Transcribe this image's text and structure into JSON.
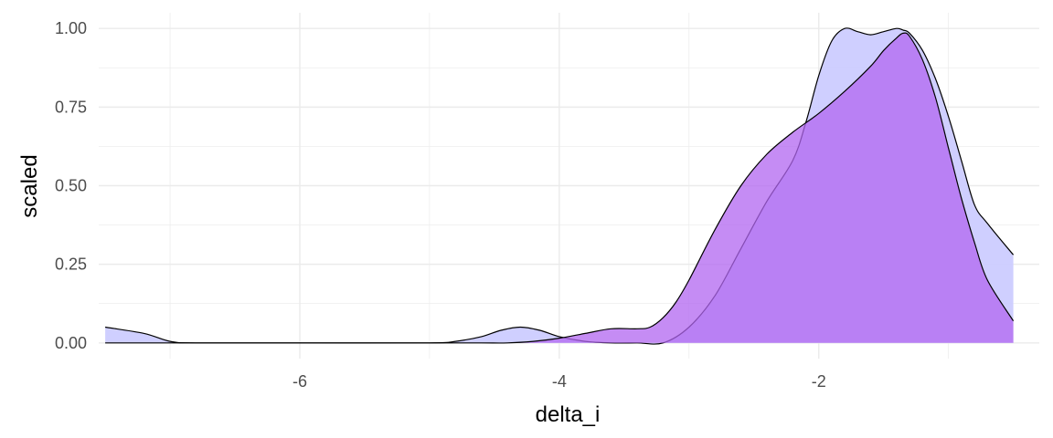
{
  "chart_data": {
    "type": "area",
    "xlabel": "delta_i",
    "ylabel": "scaled",
    "xlim": [
      -7.55,
      -0.3
    ],
    "ylim": [
      -0.05,
      1.05
    ],
    "x_ticks": [
      -6,
      -4,
      -2
    ],
    "x_tick_labels": [
      "-6",
      "-4",
      "-2"
    ],
    "y_ticks": [
      0,
      0.25,
      0.5,
      0.75,
      1.0
    ],
    "y_tick_labels": [
      "0.00",
      "0.25",
      "0.50",
      "0.75",
      "1.00"
    ],
    "grid": true,
    "colors": {
      "series_a_fill": "#ccccff",
      "series_b_fill": "#b266f0",
      "outline": "#000000",
      "grid": "#ebebeb"
    },
    "series": [
      {
        "x": [
          -7.5,
          -7.2,
          -7.0,
          -6.8,
          -6.0,
          -5.0,
          -4.8,
          -4.6,
          -4.45,
          -4.3,
          -4.15,
          -4.0,
          -3.8,
          -3.6,
          -3.4,
          -3.2,
          -3.0,
          -2.8,
          -2.6,
          -2.4,
          -2.2,
          -2.1,
          -2.0,
          -1.9,
          -1.8,
          -1.7,
          -1.6,
          -1.5,
          -1.4,
          -1.35,
          -1.3,
          -1.2,
          -1.1,
          -1.0,
          -0.9,
          -0.8,
          -0.7,
          -0.5
        ],
        "y": [
          0.05,
          0.03,
          0.005,
          0.0,
          0.0,
          0.0,
          0.005,
          0.02,
          0.04,
          0.05,
          0.04,
          0.02,
          0.005,
          0.0,
          0.0,
          0.0,
          0.05,
          0.15,
          0.3,
          0.45,
          0.58,
          0.7,
          0.85,
          0.96,
          1.0,
          0.99,
          0.98,
          0.99,
          1.0,
          0.995,
          0.985,
          0.93,
          0.84,
          0.72,
          0.58,
          0.44,
          0.38,
          0.28
        ]
      },
      {
        "x": [
          -7.5,
          -5.0,
          -4.6,
          -4.4,
          -4.2,
          -4.0,
          -3.8,
          -3.6,
          -3.4,
          -3.3,
          -3.2,
          -3.1,
          -3.0,
          -2.8,
          -2.6,
          -2.4,
          -2.2,
          -2.0,
          -1.8,
          -1.6,
          -1.5,
          -1.4,
          -1.35,
          -1.3,
          -1.2,
          -1.1,
          -1.0,
          -0.9,
          -0.8,
          -0.7,
          -0.5
        ],
        "y": [
          0.0,
          0.0,
          0.0,
          0.0,
          0.005,
          0.015,
          0.03,
          0.045,
          0.045,
          0.05,
          0.08,
          0.13,
          0.2,
          0.36,
          0.5,
          0.6,
          0.67,
          0.73,
          0.8,
          0.88,
          0.93,
          0.97,
          0.985,
          0.975,
          0.9,
          0.78,
          0.62,
          0.46,
          0.32,
          0.2,
          0.07
        ]
      }
    ]
  }
}
